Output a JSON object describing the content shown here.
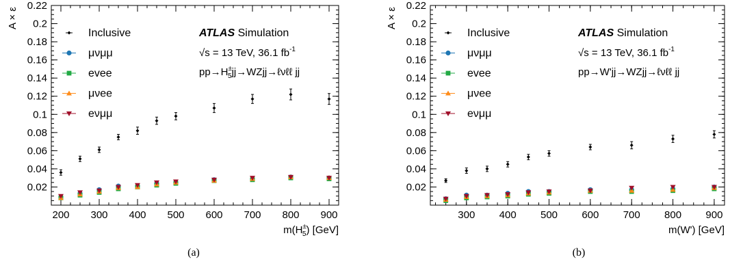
{
  "chart_data": [
    {
      "type": "scatter",
      "panel_caption": "(a)",
      "ylabel": "A × ε",
      "xlabel_main": "m(H",
      "xlabel_sup": "±",
      "xlabel_sub": "5",
      "xlabel_end": ") [GeV]",
      "xlim": [
        175,
        925
      ],
      "ylim": [
        0,
        0.22
      ],
      "x_ticks": [
        200,
        300,
        400,
        500,
        600,
        700,
        800,
        900
      ],
      "y_ticks": [
        0.02,
        0.04,
        0.06,
        0.08,
        0.1,
        0.12,
        0.14,
        0.16,
        0.18,
        0.2,
        0.22
      ],
      "atlas_label": "ATLAS",
      "atlas_suffix": "Simulation",
      "energy_prefix": "√s = 13 TeV, 36.1 fb",
      "energy_sup": "-1",
      "process_prefix": "pp→H",
      "process_sup": "±",
      "process_sub": "5",
      "process_suffix": "jj→WZjj→ℓνℓℓ jj",
      "legend_position": "top-left",
      "series": [
        {
          "name": "Inclusive",
          "marker": "diamond",
          "color": "#000000",
          "x": [
            200,
            250,
            300,
            350,
            400,
            450,
            500,
            600,
            700,
            800,
            900
          ],
          "y": [
            0.036,
            0.051,
            0.061,
            0.075,
            0.082,
            0.093,
            0.098,
            0.107,
            0.117,
            0.122,
            0.117
          ],
          "err": [
            0.003,
            0.003,
            0.003,
            0.003,
            0.004,
            0.004,
            0.004,
            0.005,
            0.005,
            0.006,
            0.006
          ]
        },
        {
          "name": "μνμμ",
          "marker": "circle",
          "color": "#1f77b4",
          "x": [
            200,
            250,
            300,
            350,
            400,
            450,
            500,
            600,
            700,
            800,
            900
          ],
          "y": [
            0.009,
            0.013,
            0.017,
            0.021,
            0.021,
            0.024,
            0.025,
            0.028,
            0.029,
            0.031,
            0.03
          ]
        },
        {
          "name": "evee",
          "marker": "square",
          "color": "#22aa44",
          "x": [
            200,
            250,
            300,
            350,
            400,
            450,
            500,
            600,
            700,
            800,
            900
          ],
          "y": [
            0.008,
            0.011,
            0.014,
            0.018,
            0.02,
            0.022,
            0.024,
            0.027,
            0.028,
            0.03,
            0.029
          ]
        },
        {
          "name": "μνee",
          "marker": "triangle-up",
          "color": "#ff8c1a",
          "x": [
            200,
            250,
            300,
            350,
            400,
            450,
            500,
            600,
            700,
            800,
            900
          ],
          "y": [
            0.008,
            0.012,
            0.015,
            0.019,
            0.02,
            0.023,
            0.025,
            0.027,
            0.029,
            0.031,
            0.03
          ]
        },
        {
          "name": "eνμμ",
          "marker": "triangle-down",
          "color": "#a0102a",
          "x": [
            200,
            250,
            300,
            350,
            400,
            450,
            500,
            600,
            700,
            800,
            900
          ],
          "y": [
            0.01,
            0.014,
            0.016,
            0.02,
            0.022,
            0.025,
            0.026,
            0.028,
            0.03,
            0.031,
            0.03
          ]
        }
      ]
    },
    {
      "type": "scatter",
      "panel_caption": "(b)",
      "ylabel": "A × ε",
      "xlabel_main": "m(W')",
      "xlabel_sup": "",
      "xlabel_sub": "",
      "xlabel_end": " [GeV]",
      "xlim": [
        212.5,
        925
      ],
      "ylim": [
        0,
        0.22
      ],
      "x_ticks": [
        300,
        400,
        500,
        600,
        700,
        800,
        900
      ],
      "y_ticks": [
        0.02,
        0.04,
        0.06,
        0.08,
        0.1,
        0.12,
        0.14,
        0.16,
        0.18,
        0.2,
        0.22
      ],
      "atlas_label": "ATLAS",
      "atlas_suffix": "Simulation",
      "energy_prefix": "√s = 13 TeV, 36.1 fb",
      "energy_sup": "-1",
      "process_prefix": "pp→W'jj→WZjj→ℓνℓℓ jj",
      "process_sup": "",
      "process_sub": "",
      "process_suffix": "",
      "legend_position": "top-left",
      "series": [
        {
          "name": "Inclusive",
          "marker": "diamond",
          "color": "#000000",
          "x": [
            250,
            300,
            350,
            400,
            450,
            500,
            600,
            700,
            800,
            900
          ],
          "y": [
            0.027,
            0.038,
            0.04,
            0.045,
            0.053,
            0.057,
            0.064,
            0.066,
            0.073,
            0.078
          ],
          "err": [
            0.002,
            0.003,
            0.003,
            0.003,
            0.003,
            0.003,
            0.003,
            0.004,
            0.004,
            0.004
          ]
        },
        {
          "name": "μνμμ",
          "marker": "circle",
          "color": "#1f77b4",
          "x": [
            250,
            300,
            350,
            400,
            450,
            500,
            600,
            700,
            800,
            900
          ],
          "y": [
            0.007,
            0.011,
            0.011,
            0.013,
            0.015,
            0.015,
            0.017,
            0.017,
            0.018,
            0.02
          ]
        },
        {
          "name": "evee",
          "marker": "square",
          "color": "#22aa44",
          "x": [
            250,
            300,
            350,
            400,
            450,
            500,
            600,
            700,
            800,
            900
          ],
          "y": [
            0.005,
            0.008,
            0.009,
            0.01,
            0.012,
            0.013,
            0.015,
            0.015,
            0.016,
            0.018
          ]
        },
        {
          "name": "μνee",
          "marker": "triangle-up",
          "color": "#ff8c1a",
          "x": [
            250,
            300,
            350,
            400,
            450,
            500,
            600,
            700,
            800,
            900
          ],
          "y": [
            0.006,
            0.009,
            0.01,
            0.011,
            0.013,
            0.014,
            0.016,
            0.016,
            0.017,
            0.019
          ]
        },
        {
          "name": "eνμμ",
          "marker": "triangle-down",
          "color": "#a0102a",
          "x": [
            250,
            300,
            350,
            400,
            450,
            500,
            600,
            700,
            800,
            900
          ],
          "y": [
            0.007,
            0.01,
            0.011,
            0.012,
            0.014,
            0.015,
            0.016,
            0.019,
            0.02,
            0.02
          ]
        }
      ]
    }
  ]
}
